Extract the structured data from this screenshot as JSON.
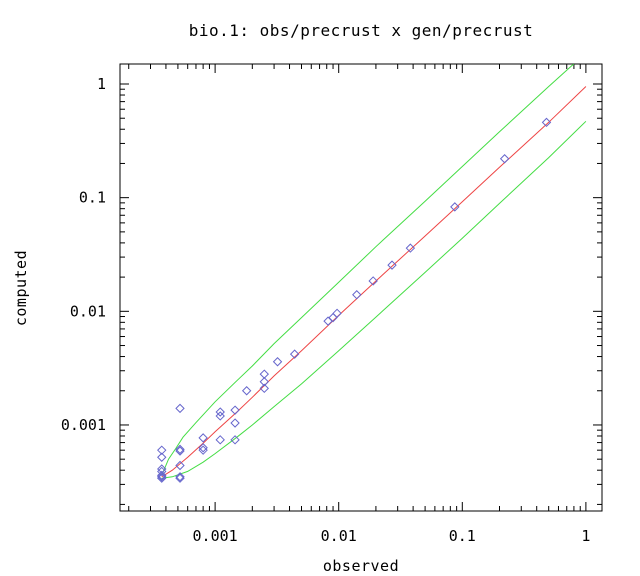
{
  "chart_data": {
    "type": "scatter",
    "title": "bio.1: obs/precrust x gen/precrust",
    "xlabel": "observed",
    "ylabel": "computed",
    "xscale": "log",
    "yscale": "log",
    "xlim": [
      0.00017,
      1.35
    ],
    "ylim": [
      0.000175,
      1.5
    ],
    "xticks": [
      {
        "value": 0.001,
        "label": "0.001"
      },
      {
        "value": 0.01,
        "label": "0.01"
      },
      {
        "value": 0.1,
        "label": "0.1"
      },
      {
        "value": 1,
        "label": "1"
      }
    ],
    "yticks": [
      {
        "value": 0.001,
        "label": "0.001"
      },
      {
        "value": 0.01,
        "label": "0.01"
      },
      {
        "value": 0.1,
        "label": "0.1"
      },
      {
        "value": 1,
        "label": "1"
      }
    ],
    "grid": false,
    "marker": "diamond",
    "colors": {
      "points": "#6666cc",
      "fit": "#ee4444",
      "band": "#44dd44",
      "axes": "#000000"
    },
    "points": [
      {
        "x": 0.00037,
        "y": 0.0006
      },
      {
        "x": 0.00037,
        "y": 0.00052
      },
      {
        "x": 0.00037,
        "y": 0.00041
      },
      {
        "x": 0.00037,
        "y": 0.00039
      },
      {
        "x": 0.00037,
        "y": 0.00036
      },
      {
        "x": 0.00037,
        "y": 0.00035
      },
      {
        "x": 0.00037,
        "y": 0.00034
      },
      {
        "x": 0.00052,
        "y": 0.0014
      },
      {
        "x": 0.00052,
        "y": 0.00061
      },
      {
        "x": 0.00052,
        "y": 0.00059
      },
      {
        "x": 0.00052,
        "y": 0.00044
      },
      {
        "x": 0.00052,
        "y": 0.00035
      },
      {
        "x": 0.00052,
        "y": 0.00034
      },
      {
        "x": 0.0008,
        "y": 0.00077
      },
      {
        "x": 0.0008,
        "y": 0.00063
      },
      {
        "x": 0.0008,
        "y": 0.0006
      },
      {
        "x": 0.0011,
        "y": 0.0013
      },
      {
        "x": 0.0011,
        "y": 0.0012
      },
      {
        "x": 0.0011,
        "y": 0.00074
      },
      {
        "x": 0.00145,
        "y": 0.00135
      },
      {
        "x": 0.00145,
        "y": 0.00104
      },
      {
        "x": 0.00145,
        "y": 0.00074
      },
      {
        "x": 0.0018,
        "y": 0.002
      },
      {
        "x": 0.0025,
        "y": 0.0028
      },
      {
        "x": 0.0025,
        "y": 0.0024
      },
      {
        "x": 0.0025,
        "y": 0.0021
      },
      {
        "x": 0.0032,
        "y": 0.0036
      },
      {
        "x": 0.0044,
        "y": 0.0042
      },
      {
        "x": 0.0082,
        "y": 0.0082
      },
      {
        "x": 0.009,
        "y": 0.0088
      },
      {
        "x": 0.0097,
        "y": 0.0096
      },
      {
        "x": 0.014,
        "y": 0.014
      },
      {
        "x": 0.019,
        "y": 0.0185
      },
      {
        "x": 0.027,
        "y": 0.0255
      },
      {
        "x": 0.038,
        "y": 0.036
      },
      {
        "x": 0.087,
        "y": 0.083
      },
      {
        "x": 0.22,
        "y": 0.22
      },
      {
        "x": 0.48,
        "y": 0.46
      }
    ],
    "fit_line": {
      "x": [
        0.00037,
        0.00045,
        0.0006,
        0.0008,
        0.001,
        0.0015,
        0.002,
        0.003,
        0.005,
        0.01,
        0.02,
        0.05,
        0.1,
        0.2,
        0.5,
        1.0
      ],
      "y": [
        0.00035,
        0.0004,
        0.00052,
        0.00069,
        0.00087,
        0.0013,
        0.00175,
        0.0027,
        0.0045,
        0.0092,
        0.0185,
        0.046,
        0.092,
        0.185,
        0.46,
        0.95
      ]
    },
    "upper_band": {
      "x": [
        0.00037,
        0.00042,
        0.00048,
        0.00055,
        0.0007,
        0.001,
        0.0015,
        0.002,
        0.003,
        0.005,
        0.01,
        0.02,
        0.05,
        0.1,
        0.2,
        0.5,
        0.85
      ],
      "y": [
        0.00036,
        0.0005,
        0.00062,
        0.00078,
        0.00105,
        0.0016,
        0.00245,
        0.0033,
        0.0052,
        0.0088,
        0.018,
        0.037,
        0.093,
        0.188,
        0.38,
        0.95,
        1.6
      ]
    },
    "lower_band": {
      "x": [
        0.00037,
        0.00045,
        0.0006,
        0.0008,
        0.001,
        0.0015,
        0.002,
        0.003,
        0.005,
        0.01,
        0.02,
        0.05,
        0.1,
        0.2,
        0.5,
        1.0
      ],
      "y": [
        0.00034,
        0.00035,
        0.00039,
        0.00047,
        0.00056,
        0.00078,
        0.001,
        0.00145,
        0.0023,
        0.0045,
        0.0089,
        0.022,
        0.044,
        0.089,
        0.225,
        0.47
      ]
    }
  }
}
